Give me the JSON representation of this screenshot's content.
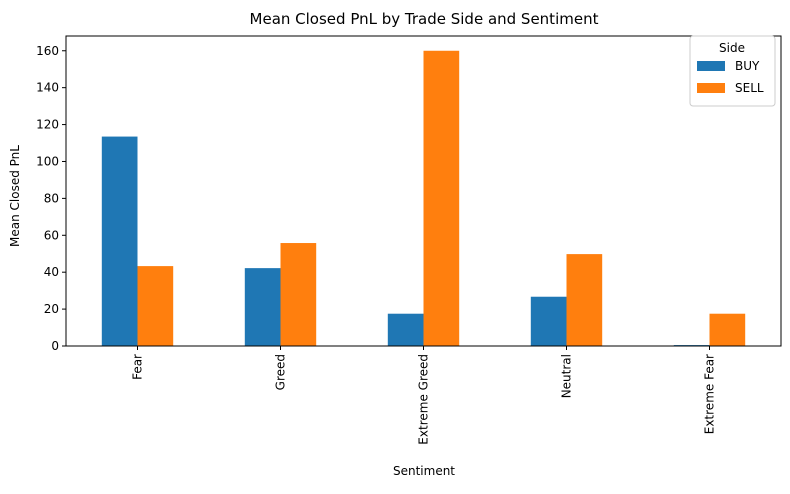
{
  "chart_data": {
    "type": "bar",
    "title": "Mean Closed PnL by Trade Side and Sentiment",
    "xlabel": "Sentiment",
    "ylabel": "Mean Closed PnL",
    "categories": [
      "Fear",
      "Greed",
      "Extreme Greed",
      "Neutral",
      "Extreme Fear"
    ],
    "series": [
      {
        "name": "BUY",
        "color": "#1f77b4",
        "values": [
          113.5,
          42.2,
          17.5,
          26.7,
          0.5
        ]
      },
      {
        "name": "SELL",
        "color": "#ff7f0e",
        "values": [
          43.3,
          55.8,
          160.0,
          49.8,
          17.5
        ]
      }
    ],
    "ylim": [
      0,
      168
    ],
    "yticks": [
      0,
      20,
      40,
      60,
      80,
      100,
      120,
      140,
      160
    ],
    "legend": {
      "title": "Side",
      "placement": "top-right"
    },
    "grid": false
  }
}
